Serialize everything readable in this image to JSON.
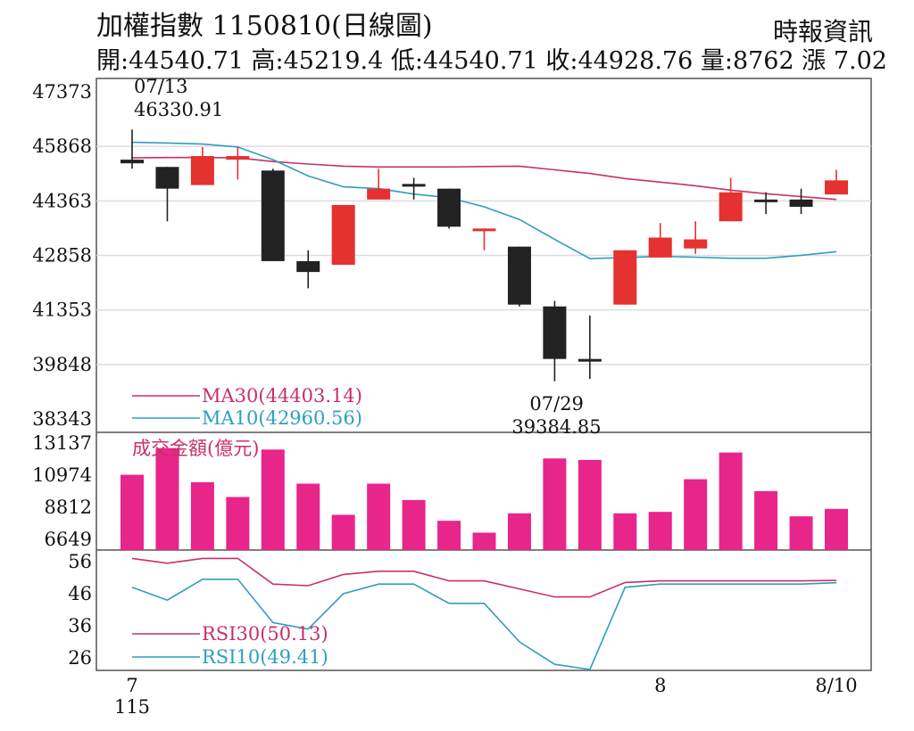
{
  "header": {
    "title": "加權指數 1150810(日線圖)",
    "source": "時報資訊",
    "quote": "開:44540.71 高:45219.4 低:44540.71 收:44928.76 量:8762 漲 7.02"
  },
  "chart_data": {
    "type": "candlestick",
    "x_labels": [
      {
        "index": 0,
        "text": "7"
      },
      {
        "index": 0,
        "text": "115"
      },
      {
        "index": 15,
        "text": "8"
      },
      {
        "index": 20,
        "text": "8/10"
      }
    ],
    "price_panel": {
      "yticks": [
        47373,
        45868,
        44363,
        42858,
        41353,
        39848,
        38343
      ],
      "ylim": [
        38343,
        47373
      ],
      "grid": true,
      "candles": [
        {
          "open": 45500,
          "close": 45400,
          "high": 46330.91,
          "low": 45250,
          "color": "black"
        },
        {
          "open": 45300,
          "close": 44700,
          "high": 45300,
          "low": 43800,
          "color": "black"
        },
        {
          "open": 44800,
          "close": 45600,
          "high": 45850,
          "low": 44800,
          "color": "red"
        },
        {
          "open": 45500,
          "close": 45600,
          "high": 45850,
          "low": 44950,
          "color": "red"
        },
        {
          "open": 45200,
          "close": 42700,
          "high": 45250,
          "low": 42700,
          "color": "black"
        },
        {
          "open": 42700,
          "close": 42400,
          "high": 43000,
          "low": 41950,
          "color": "black"
        },
        {
          "open": 42600,
          "close": 44250,
          "high": 44250,
          "low": 42600,
          "color": "red"
        },
        {
          "open": 44400,
          "close": 44700,
          "high": 45250,
          "low": 44400,
          "color": "red"
        },
        {
          "open": 44830,
          "close": 44830,
          "high": 45000,
          "low": 44400,
          "color": "black"
        },
        {
          "open": 44700,
          "close": 43650,
          "high": 44700,
          "low": 43600,
          "color": "black"
        },
        {
          "open": 43600,
          "close": 43600,
          "high": 43600,
          "low": 43000,
          "color": "red"
        },
        {
          "open": 43100,
          "close": 41500,
          "high": 43100,
          "low": 41450,
          "color": "black"
        },
        {
          "open": 41450,
          "close": 40000,
          "high": 41600,
          "low": 39384.85,
          "color": "black"
        },
        {
          "open": 40000,
          "close": 39950,
          "high": 41200,
          "low": 39450,
          "color": "black"
        },
        {
          "open": 41500,
          "close": 43000,
          "high": 43000,
          "low": 41500,
          "color": "red"
        },
        {
          "open": 42800,
          "close": 43350,
          "high": 43750,
          "low": 42800,
          "color": "red"
        },
        {
          "open": 43050,
          "close": 43300,
          "high": 43800,
          "low": 42900,
          "color": "red"
        },
        {
          "open": 43800,
          "close": 44600,
          "high": 45000,
          "low": 43800,
          "color": "red"
        },
        {
          "open": 44400,
          "close": 44350,
          "high": 44600,
          "low": 44000,
          "color": "black"
        },
        {
          "open": 44400,
          "close": 44200,
          "high": 44700,
          "low": 44000,
          "color": "black"
        },
        {
          "open": 44540.71,
          "close": 44928.76,
          "high": 45219.4,
          "low": 44540.71,
          "color": "red"
        }
      ],
      "ma30": {
        "label": "MA30(44403.14)",
        "color": "#c8306a",
        "values": [
          45550,
          45560,
          45560,
          45550,
          45450,
          45380,
          45320,
          45300,
          45300,
          45300,
          45310,
          45320,
          45220,
          45120,
          44980,
          44880,
          44780,
          44660,
          44560,
          44480,
          44403.14
        ]
      },
      "ma10": {
        "label": "MA10(42960.56)",
        "color": "#2f9ec0",
        "values": [
          45980,
          45960,
          45930,
          45850,
          45500,
          45050,
          44750,
          44700,
          44550,
          44450,
          44200,
          43850,
          43300,
          42770,
          42800,
          42830,
          42810,
          42780,
          42780,
          42860,
          42960.56
        ]
      },
      "annotations": [
        {
          "index": 0,
          "date": "07/13",
          "value": "46330.91"
        },
        {
          "index": 12,
          "date": "07/29",
          "value": "39384.85"
        }
      ]
    },
    "volume_panel": {
      "title": "成交金額(億元)",
      "yticks": [
        13137,
        10974,
        8812,
        6649
      ],
      "ylim": [
        6649,
        13137
      ],
      "color": "#e8258a",
      "values": [
        11000,
        12800,
        10500,
        9500,
        12700,
        10400,
        8300,
        10400,
        9300,
        7900,
        7100,
        8400,
        12100,
        12000,
        8400,
        8500,
        10700,
        12500,
        9900,
        8200,
        8700
      ]
    },
    "rsi_panel": {
      "yticks": [
        56,
        46,
        36,
        26
      ],
      "ylim": [
        23,
        57
      ],
      "rsi30": {
        "label": "RSI30(50.13)",
        "color": "#c8306a",
        "values": [
          57,
          55.5,
          57,
          57,
          49,
          48.5,
          52,
          53,
          53,
          50,
          50,
          47.5,
          45,
          45,
          49.5,
          50,
          50,
          50,
          50,
          50,
          50.13
        ]
      },
      "rsi10": {
        "label": "RSI10(49.41)",
        "color": "#2f9ec0",
        "values": [
          48,
          44,
          50.5,
          50.5,
          37,
          35,
          46,
          49,
          49,
          43,
          43,
          31,
          24,
          22,
          48,
          49,
          49,
          49,
          49,
          49,
          49.41
        ]
      }
    }
  }
}
